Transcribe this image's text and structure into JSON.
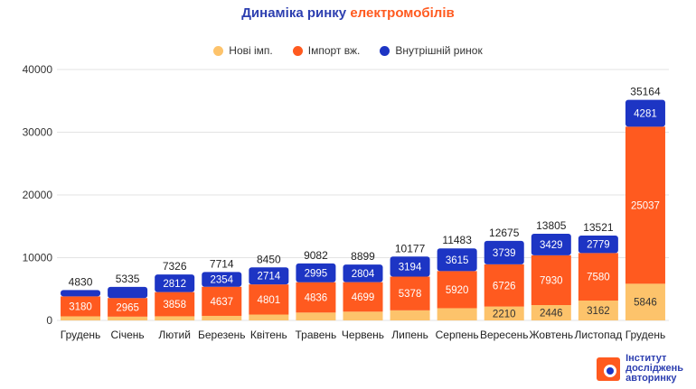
{
  "title": {
    "part1": "Динаміка ринку ",
    "part2": "електромобілів"
  },
  "logo": {
    "line1": "Інститут",
    "line2": "досліджень",
    "line3": "авторинку"
  },
  "colors": {
    "new_import": "#fdc36b",
    "used_import": "#ff5a1f",
    "domestic": "#1d35c4",
    "title": "#2d3fb0"
  },
  "chart_data": {
    "type": "bar",
    "stacked": true,
    "title": "Динаміка ринку електромобілів",
    "categories": [
      "Грудень",
      "Січень",
      "Лютий",
      "Березень",
      "Квітень",
      "Травень",
      "Червень",
      "Липень",
      "Серпень",
      "Вересень",
      "Жовтень",
      "Листопад",
      "Грудень"
    ],
    "series": [
      {
        "name": "Нові імп.",
        "color": "#fdc36b",
        "values": [
          650,
          600,
          656,
          723,
          935,
          1251,
          1396,
          1605,
          1948,
          2210,
          2446,
          3162,
          5846
        ],
        "labels": [
          null,
          null,
          null,
          null,
          null,
          null,
          null,
          null,
          null,
          "2210",
          "2446",
          "3162",
          "5846"
        ]
      },
      {
        "name": "Імпорт вж.",
        "color": "#ff5a1f",
        "values": [
          3180,
          2965,
          3858,
          4637,
          4801,
          4836,
          4699,
          5378,
          5920,
          6726,
          7930,
          7580,
          25037
        ],
        "labels": [
          "3180",
          "2965",
          "3858",
          "4637",
          "4801",
          "4836",
          "4699",
          "5378",
          "5920",
          "6726",
          "7930",
          "7580",
          "25037"
        ]
      },
      {
        "name": "Внутрішній ринок",
        "color": "#1d35c4",
        "values": [
          1000,
          1770,
          2812,
          2354,
          2714,
          2995,
          2804,
          3194,
          3615,
          3739,
          3429,
          2779,
          4281
        ],
        "labels": [
          null,
          null,
          "2812",
          "2354",
          "2714",
          "2995",
          "2804",
          "3194",
          "3615",
          "3739",
          "3429",
          "2779",
          "4281"
        ]
      }
    ],
    "totals": [
      "4830",
      "5335",
      "7326",
      "7714",
      "8450",
      "9082",
      "8899",
      "10177",
      "11483",
      "12675",
      "13805",
      "13521",
      "35164"
    ],
    "ylim": [
      0,
      40000
    ],
    "yticks": [
      "0",
      "10000",
      "20000",
      "30000",
      "40000"
    ],
    "grid": true,
    "legend": "top"
  }
}
